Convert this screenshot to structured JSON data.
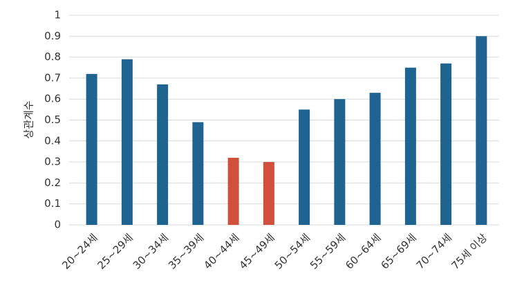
{
  "chart_data": {
    "type": "bar",
    "y_label": "상관계수",
    "categories": [
      "20~24세",
      "25~29세",
      "30~34세",
      "35~39세",
      "40~44세",
      "45~49세",
      "50~54세",
      "55~59세",
      "60~64세",
      "65~69세",
      "70~74세",
      "75세 이상"
    ],
    "values": [
      0.72,
      0.79,
      0.67,
      0.49,
      0.32,
      0.3,
      0.55,
      0.6,
      0.63,
      0.75,
      0.77,
      0.9
    ],
    "colors": [
      "#1f6391",
      "#1f6391",
      "#1f6391",
      "#1f6391",
      "#d0503c",
      "#d0503c",
      "#1f6391",
      "#1f6391",
      "#1f6391",
      "#1f6391",
      "#1f6391",
      "#1f6391"
    ],
    "ylim": [
      0,
      1
    ],
    "yticks": [
      0,
      0.1,
      0.2,
      0.3,
      0.4,
      0.5,
      0.6,
      0.7,
      0.8,
      0.9,
      1
    ],
    "grid": true
  }
}
